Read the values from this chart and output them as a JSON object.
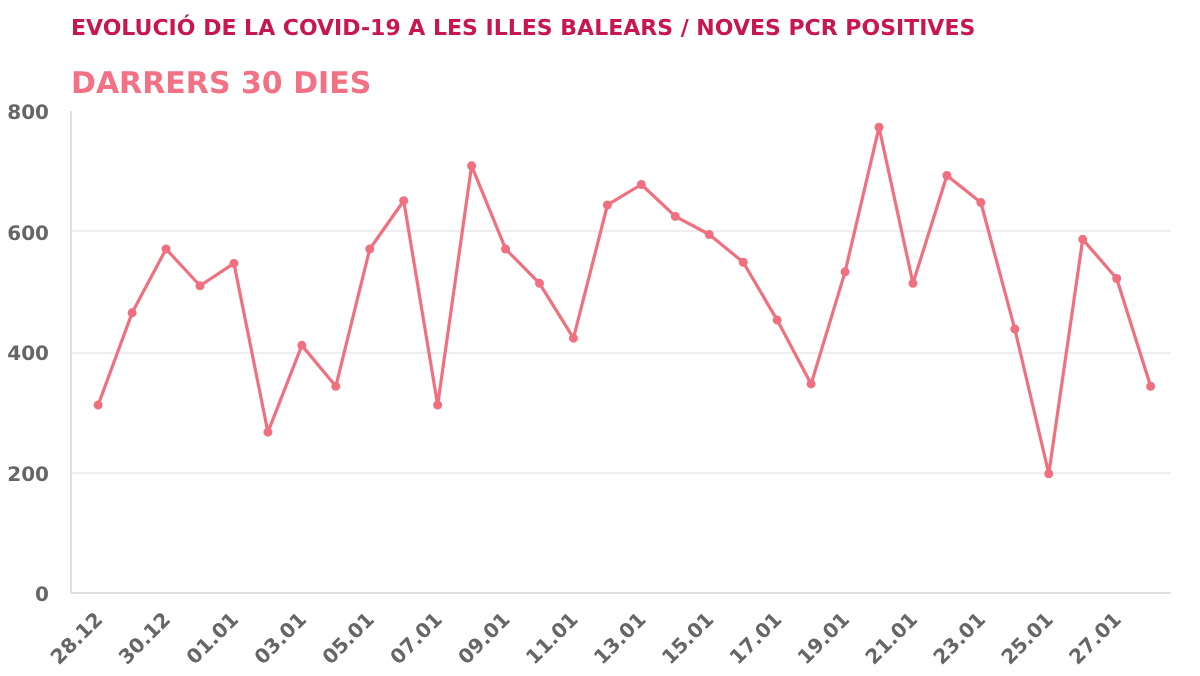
{
  "chart_data": {
    "type": "line",
    "title": "EVOLUCIÓ DE LA COVID-19 A LES ILLES BALEARS / NOVES PCR POSITIVES",
    "subtitle": "DARRERS 30 DIES",
    "categories": [
      "28.12",
      null,
      "30.12",
      null,
      "01.01",
      null,
      "03.01",
      null,
      "05.01",
      null,
      "07.01",
      null,
      "09.01",
      null,
      "11.01",
      null,
      "13.01",
      null,
      "15.01",
      null,
      "17.01",
      null,
      "19.01",
      null,
      "21.01",
      null,
      "23.01",
      null,
      "25.01",
      null,
      "27.01",
      null
    ],
    "series": [
      {
        "color": "#f0707f",
        "values": [
          312,
          465,
          571,
          510,
          547,
          267,
          411,
          343,
          571,
          651,
          312,
          709,
          571,
          514,
          423,
          644,
          678,
          625,
          595,
          549,
          453,
          347,
          533,
          773,
          514,
          693,
          648,
          438,
          198,
          587,
          522,
          343
        ]
      }
    ],
    "ylim": [
      0,
      800
    ],
    "yticks": [
      0,
      200,
      400,
      600,
      800
    ],
    "grid": "y",
    "marker": "circle",
    "line_style": "solid"
  }
}
